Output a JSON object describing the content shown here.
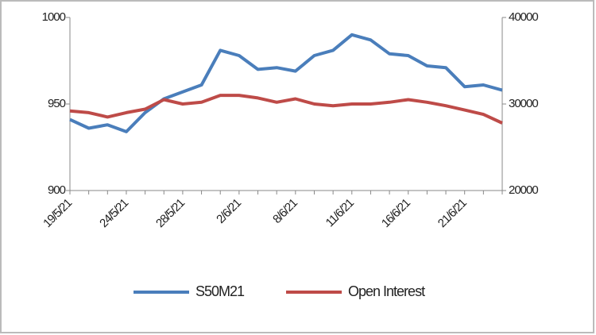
{
  "chart_data": {
    "type": "line",
    "categories": [
      "19/5/21",
      null,
      null,
      "24/5/21",
      null,
      null,
      "28/5/21",
      null,
      null,
      "2/6/21",
      null,
      null,
      "8/6/21",
      null,
      null,
      "11/6/21",
      null,
      null,
      "16/6/21",
      null,
      null,
      "21/6/21",
      null,
      null
    ],
    "series": [
      {
        "name": "S50M21",
        "color": "#4a7ebb",
        "values": [
          941,
          936,
          938,
          934,
          945,
          953,
          957,
          961,
          981,
          978,
          970,
          971,
          969,
          978,
          981,
          990,
          987,
          979,
          978,
          972,
          971,
          960,
          961,
          958
        ]
      },
      {
        "name": "Open Interest",
        "color": "#be4b48",
        "axis": "y2",
        "values": [
          29200,
          29000,
          28500,
          29000,
          29400,
          30500,
          30000,
          30200,
          31000,
          31000,
          30700,
          30200,
          30600,
          30000,
          29800,
          30000,
          30000,
          30200,
          30500,
          30200,
          29800,
          29300,
          28800,
          27800
        ]
      }
    ],
    "ylim": [
      900,
      1000
    ],
    "yticks": [
      900,
      950,
      1000
    ],
    "y2lim": [
      20000,
      40000
    ],
    "y2ticks": [
      20000,
      30000,
      40000
    ],
    "legend": "bottom"
  }
}
